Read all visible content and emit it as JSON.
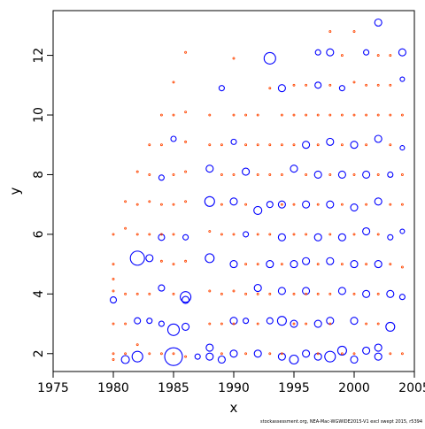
{
  "chart_data": {
    "type": "scatter",
    "title": "",
    "xlabel": "x",
    "ylabel": "y",
    "xlim": [
      1975,
      2005
    ],
    "ylim": [
      1.4,
      13.5
    ],
    "x_ticks": [
      1975,
      1980,
      1985,
      1990,
      1995,
      2000,
      2005
    ],
    "y_ticks": [
      2,
      4,
      6,
      8,
      10,
      12
    ],
    "grid": false,
    "legend": "none",
    "marker": "open-circle",
    "colors": {
      "positive": "#0000ff",
      "negative": "#ff4500",
      "axis": "#000000"
    },
    "series": [
      {
        "color": "#0000ff",
        "points": [
          [
            1980,
            3.8,
            3.5
          ],
          [
            1981,
            1.8,
            4.5
          ],
          [
            1982,
            1.9,
            6
          ],
          [
            1982,
            5.2,
            8
          ],
          [
            1982,
            3.1,
            3.5
          ],
          [
            1983,
            5.2,
            4
          ],
          [
            1983,
            3.1,
            3
          ],
          [
            1984,
            5.9,
            3.5
          ],
          [
            1984,
            4.2,
            3.5
          ],
          [
            1984,
            7.9,
            3
          ],
          [
            1984,
            3.0,
            3
          ],
          [
            1985,
            2.8,
            6.5
          ],
          [
            1985,
            1.9,
            10
          ],
          [
            1985,
            9.2,
            3
          ],
          [
            1986,
            3.9,
            6
          ],
          [
            1986,
            3.8,
            4
          ],
          [
            1986,
            2.9,
            4
          ],
          [
            1986,
            5.9,
            3
          ],
          [
            1987,
            1.9,
            3
          ],
          [
            1988,
            7.1,
            5.5
          ],
          [
            1988,
            5.2,
            5
          ],
          [
            1988,
            8.2,
            4
          ],
          [
            1988,
            2.2,
            4
          ],
          [
            1988,
            1.9,
            4
          ],
          [
            1989,
            10.9,
            3
          ],
          [
            1989,
            1.8,
            4
          ],
          [
            1990,
            7.1,
            4
          ],
          [
            1990,
            5.0,
            4
          ],
          [
            1990,
            3.1,
            4
          ],
          [
            1990,
            2.0,
            4
          ],
          [
            1990,
            9.1,
            3
          ],
          [
            1991,
            8.1,
            4
          ],
          [
            1991,
            6.0,
            3
          ],
          [
            1991,
            3.1,
            3
          ],
          [
            1992,
            6.8,
            4.5
          ],
          [
            1992,
            4.2,
            4
          ],
          [
            1992,
            2.0,
            4
          ],
          [
            1993,
            11.9,
            6.5
          ],
          [
            1993,
            7.0,
            3.5
          ],
          [
            1993,
            5.0,
            4
          ],
          [
            1993,
            3.1,
            3.5
          ],
          [
            1994,
            10.9,
            4
          ],
          [
            1994,
            7.0,
            4
          ],
          [
            1994,
            5.9,
            4
          ],
          [
            1994,
            4.1,
            4
          ],
          [
            1994,
            3.1,
            5
          ],
          [
            1994,
            1.9,
            4
          ],
          [
            1995,
            8.2,
            4
          ],
          [
            1995,
            5.0,
            4
          ],
          [
            1995,
            3.0,
            4
          ],
          [
            1995,
            1.8,
            5
          ],
          [
            1996,
            9.0,
            4
          ],
          [
            1996,
            7.0,
            4
          ],
          [
            1996,
            5.1,
            4
          ],
          [
            1996,
            4.1,
            4
          ],
          [
            1996,
            2.0,
            4
          ],
          [
            1997,
            12.1,
            3
          ],
          [
            1997,
            11.0,
            3.5
          ],
          [
            1997,
            8.0,
            4
          ],
          [
            1997,
            5.9,
            4
          ],
          [
            1997,
            3.0,
            4
          ],
          [
            1997,
            1.9,
            4
          ],
          [
            1998,
            12.1,
            4
          ],
          [
            1998,
            9.1,
            4
          ],
          [
            1998,
            7.0,
            4
          ],
          [
            1998,
            5.1,
            4
          ],
          [
            1998,
            3.1,
            4
          ],
          [
            1998,
            1.9,
            6
          ],
          [
            1999,
            10.9,
            3
          ],
          [
            1999,
            8.0,
            4
          ],
          [
            1999,
            5.9,
            4
          ],
          [
            1999,
            4.1,
            4
          ],
          [
            1999,
            2.1,
            5
          ],
          [
            2000,
            9.0,
            4
          ],
          [
            2000,
            6.9,
            4
          ],
          [
            2000,
            5.0,
            4
          ],
          [
            2000,
            3.1,
            4
          ],
          [
            2000,
            1.8,
            4
          ],
          [
            2001,
            12.1,
            3
          ],
          [
            2001,
            8.0,
            4
          ],
          [
            2001,
            6.1,
            4
          ],
          [
            2001,
            4.0,
            4
          ],
          [
            2001,
            2.1,
            4
          ],
          [
            2002,
            13.1,
            4
          ],
          [
            2002,
            9.2,
            4
          ],
          [
            2002,
            7.1,
            4
          ],
          [
            2002,
            5.0,
            4
          ],
          [
            2002,
            2.2,
            4
          ],
          [
            2002,
            1.9,
            4
          ],
          [
            2003,
            8.0,
            3
          ],
          [
            2003,
            5.9,
            3
          ],
          [
            2003,
            4.0,
            4
          ],
          [
            2003,
            2.9,
            5
          ],
          [
            2004,
            12.1,
            4
          ],
          [
            2004,
            11.2,
            2.5
          ],
          [
            2004,
            8.9,
            2.5
          ],
          [
            2004,
            6.1,
            2.5
          ],
          [
            2004,
            3.9,
            3
          ]
        ]
      },
      {
        "color": "#ff4500",
        "points": [
          [
            1980,
            4.1,
            1
          ],
          [
            1980,
            4.5,
            1
          ],
          [
            1980,
            5.0,
            1
          ],
          [
            1980,
            6.0,
            1
          ],
          [
            1980,
            3.0,
            1
          ],
          [
            1980,
            2.0,
            1
          ],
          [
            1980,
            1.8,
            1
          ],
          [
            1981,
            3.0,
            1
          ],
          [
            1981,
            4.0,
            1
          ],
          [
            1981,
            6.2,
            1
          ],
          [
            1981,
            7.1,
            1
          ],
          [
            1981,
            2.0,
            1
          ],
          [
            1982,
            4.0,
            1
          ],
          [
            1982,
            6.0,
            1
          ],
          [
            1982,
            7.0,
            1
          ],
          [
            1982,
            8.1,
            1
          ],
          [
            1982,
            2.3,
            1
          ],
          [
            1983,
            4.0,
            1
          ],
          [
            1983,
            6.0,
            1
          ],
          [
            1983,
            7.1,
            1
          ],
          [
            1983,
            8.0,
            1
          ],
          [
            1983,
            9.0,
            1
          ],
          [
            1983,
            2.0,
            1
          ],
          [
            1984,
            5.1,
            1
          ],
          [
            1984,
            6.0,
            1
          ],
          [
            1984,
            7.0,
            1
          ],
          [
            1984,
            9.0,
            1
          ],
          [
            1984,
            10.0,
            1
          ],
          [
            1984,
            2.0,
            1
          ],
          [
            1985,
            4.0,
            1
          ],
          [
            1985,
            5.0,
            1
          ],
          [
            1985,
            6.0,
            1
          ],
          [
            1985,
            7.0,
            1
          ],
          [
            1985,
            8.0,
            1
          ],
          [
            1985,
            10.0,
            1
          ],
          [
            1985,
            11.1,
            1
          ],
          [
            1985,
            2.0,
            1
          ],
          [
            1986,
            5.1,
            1
          ],
          [
            1986,
            7.1,
            1
          ],
          [
            1986,
            8.1,
            1
          ],
          [
            1986,
            9.1,
            1
          ],
          [
            1986,
            10.1,
            1
          ],
          [
            1986,
            12.1,
            1
          ],
          [
            1986,
            1.9,
            1
          ],
          [
            1988,
            4.1,
            1
          ],
          [
            1988,
            6.1,
            1
          ],
          [
            1988,
            9.0,
            1
          ],
          [
            1988,
            10.0,
            1
          ],
          [
            1988,
            3.0,
            1
          ],
          [
            1989,
            4.0,
            1
          ],
          [
            1989,
            6.0,
            1
          ],
          [
            1989,
            7.0,
            1
          ],
          [
            1989,
            8.0,
            1
          ],
          [
            1989,
            9.0,
            1
          ],
          [
            1989,
            3.0,
            1
          ],
          [
            1989,
            2.0,
            1
          ],
          [
            1990,
            4.1,
            1
          ],
          [
            1990,
            6.0,
            1
          ],
          [
            1990,
            8.0,
            1
          ],
          [
            1990,
            10.0,
            1
          ],
          [
            1990,
            11.9,
            1
          ],
          [
            1990,
            3.0,
            1
          ],
          [
            1991,
            4.0,
            1
          ],
          [
            1991,
            5.0,
            1
          ],
          [
            1991,
            7.0,
            1
          ],
          [
            1991,
            9.0,
            1
          ],
          [
            1991,
            10.0,
            1
          ],
          [
            1991,
            2.0,
            1
          ],
          [
            1992,
            4.0,
            1
          ],
          [
            1992,
            5.0,
            1
          ],
          [
            1992,
            6.0,
            1
          ],
          [
            1992,
            8.0,
            1
          ],
          [
            1992,
            9.0,
            1
          ],
          [
            1992,
            10.0,
            1
          ],
          [
            1992,
            3.0,
            1
          ],
          [
            1993,
            4.0,
            1
          ],
          [
            1993,
            6.0,
            1
          ],
          [
            1993,
            8.0,
            1
          ],
          [
            1993,
            9.0,
            1
          ],
          [
            1993,
            10.9,
            1
          ],
          [
            1993,
            2.0,
            1
          ],
          [
            1994,
            5.0,
            1
          ],
          [
            1994,
            7.0,
            1
          ],
          [
            1994,
            8.0,
            1
          ],
          [
            1994,
            9.0,
            1
          ],
          [
            1994,
            10.0,
            1
          ],
          [
            1994,
            2.0,
            1
          ],
          [
            1995,
            4.0,
            1
          ],
          [
            1995,
            6.0,
            1
          ],
          [
            1995,
            7.0,
            1
          ],
          [
            1995,
            9.0,
            1
          ],
          [
            1995,
            10.0,
            1
          ],
          [
            1995,
            11.0,
            1
          ],
          [
            1995,
            3.0,
            1
          ],
          [
            1996,
            4.0,
            1
          ],
          [
            1996,
            6.0,
            1
          ],
          [
            1996,
            8.0,
            1
          ],
          [
            1996,
            10.0,
            1
          ],
          [
            1996,
            11.0,
            1
          ],
          [
            1996,
            3.0,
            1
          ],
          [
            1997,
            4.0,
            1
          ],
          [
            1997,
            5.0,
            1
          ],
          [
            1997,
            7.0,
            1
          ],
          [
            1997,
            9.0,
            1
          ],
          [
            1997,
            10.0,
            1
          ],
          [
            1997,
            2.0,
            1
          ],
          [
            1998,
            4.0,
            1
          ],
          [
            1998,
            6.0,
            1
          ],
          [
            1998,
            8.0,
            1
          ],
          [
            1998,
            10.0,
            1
          ],
          [
            1998,
            11.0,
            1
          ],
          [
            1998,
            12.8,
            1
          ],
          [
            1998,
            3.0,
            1
          ],
          [
            1999,
            5.0,
            1
          ],
          [
            1999,
            7.0,
            1
          ],
          [
            1999,
            9.0,
            1
          ],
          [
            1999,
            10.0,
            1
          ],
          [
            1999,
            12.0,
            1
          ],
          [
            1999,
            2.0,
            1
          ],
          [
            2000,
            4.0,
            1
          ],
          [
            2000,
            6.0,
            1
          ],
          [
            2000,
            8.0,
            1
          ],
          [
            2000,
            10.0,
            1
          ],
          [
            2000,
            11.1,
            1
          ],
          [
            2000,
            12.8,
            1
          ],
          [
            2000,
            2.0,
            1
          ],
          [
            2001,
            5.0,
            1
          ],
          [
            2001,
            7.0,
            1
          ],
          [
            2001,
            9.0,
            1
          ],
          [
            2001,
            10.0,
            1
          ],
          [
            2001,
            11.0,
            1
          ],
          [
            2001,
            3.0,
            1
          ],
          [
            2002,
            4.0,
            1
          ],
          [
            2002,
            6.0,
            1
          ],
          [
            2002,
            8.0,
            1
          ],
          [
            2002,
            10.0,
            1
          ],
          [
            2002,
            11.0,
            1
          ],
          [
            2002,
            12.0,
            1
          ],
          [
            2002,
            3.0,
            1
          ],
          [
            2003,
            5.0,
            1
          ],
          [
            2003,
            7.0,
            1
          ],
          [
            2003,
            9.0,
            1
          ],
          [
            2003,
            10.0,
            1
          ],
          [
            2003,
            11.0,
            1
          ],
          [
            2003,
            12.0,
            1
          ],
          [
            2003,
            2.0,
            1
          ],
          [
            2004,
            4.9,
            1
          ],
          [
            2004,
            7.0,
            1
          ],
          [
            2004,
            8.0,
            1
          ],
          [
            2004,
            10.0,
            1
          ],
          [
            2004,
            2.0,
            1
          ]
        ]
      }
    ]
  },
  "footer": {
    "source": "stockassessment.org, NEA-Mac-WGWIDE2015-V1 excl swept 2015, r5394"
  }
}
